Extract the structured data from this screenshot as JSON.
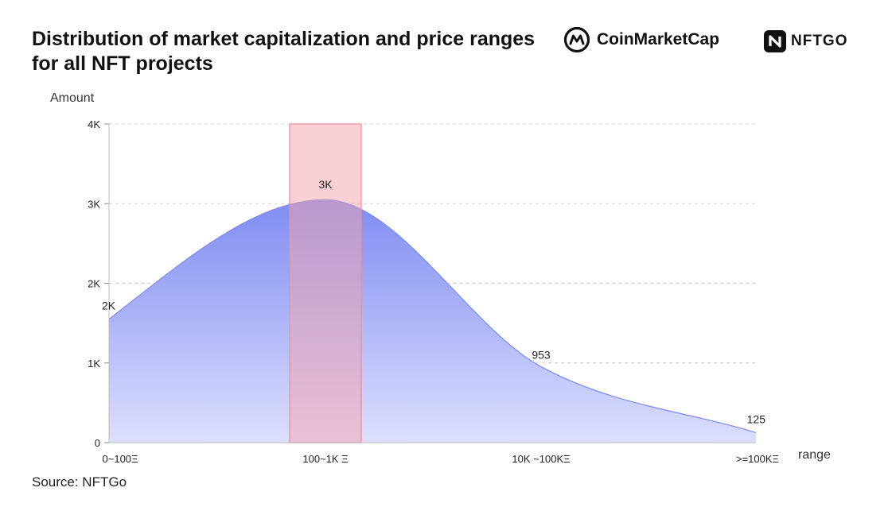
{
  "title": "Distribution of market capitalization and price ranges for all NFT projects",
  "brands": {
    "coinmarketcap": "CoinMarketCap",
    "nftgo": "NFTGO"
  },
  "source": "Source: NFTGo",
  "colors": {
    "area_top": "#7f8cf2",
    "area_bottom": "#dcdffc",
    "highlight": "#f4a3ab",
    "grid": "#cccccc"
  },
  "chart_data": {
    "type": "area",
    "ylabel": "Amount",
    "xlabel": "range",
    "ylim": [
      0,
      4000
    ],
    "y_ticks": [
      {
        "value": 0,
        "label": "0"
      },
      {
        "value": 1000,
        "label": "1K"
      },
      {
        "value": 2000,
        "label": "2K"
      },
      {
        "value": 3000,
        "label": "3K"
      },
      {
        "value": 4000,
        "label": "4K"
      }
    ],
    "categories": [
      "0~100Ξ",
      "100~1K Ξ",
      "10K ~100KΞ",
      ">=100KΞ"
    ],
    "series": [
      {
        "values": [
          1550,
          3050,
          953,
          125
        ],
        "data_labels": [
          "2K",
          "3K",
          "953",
          "125"
        ]
      }
    ],
    "highlight_category": "100~1K Ξ",
    "grid": true,
    "legend": "none"
  }
}
